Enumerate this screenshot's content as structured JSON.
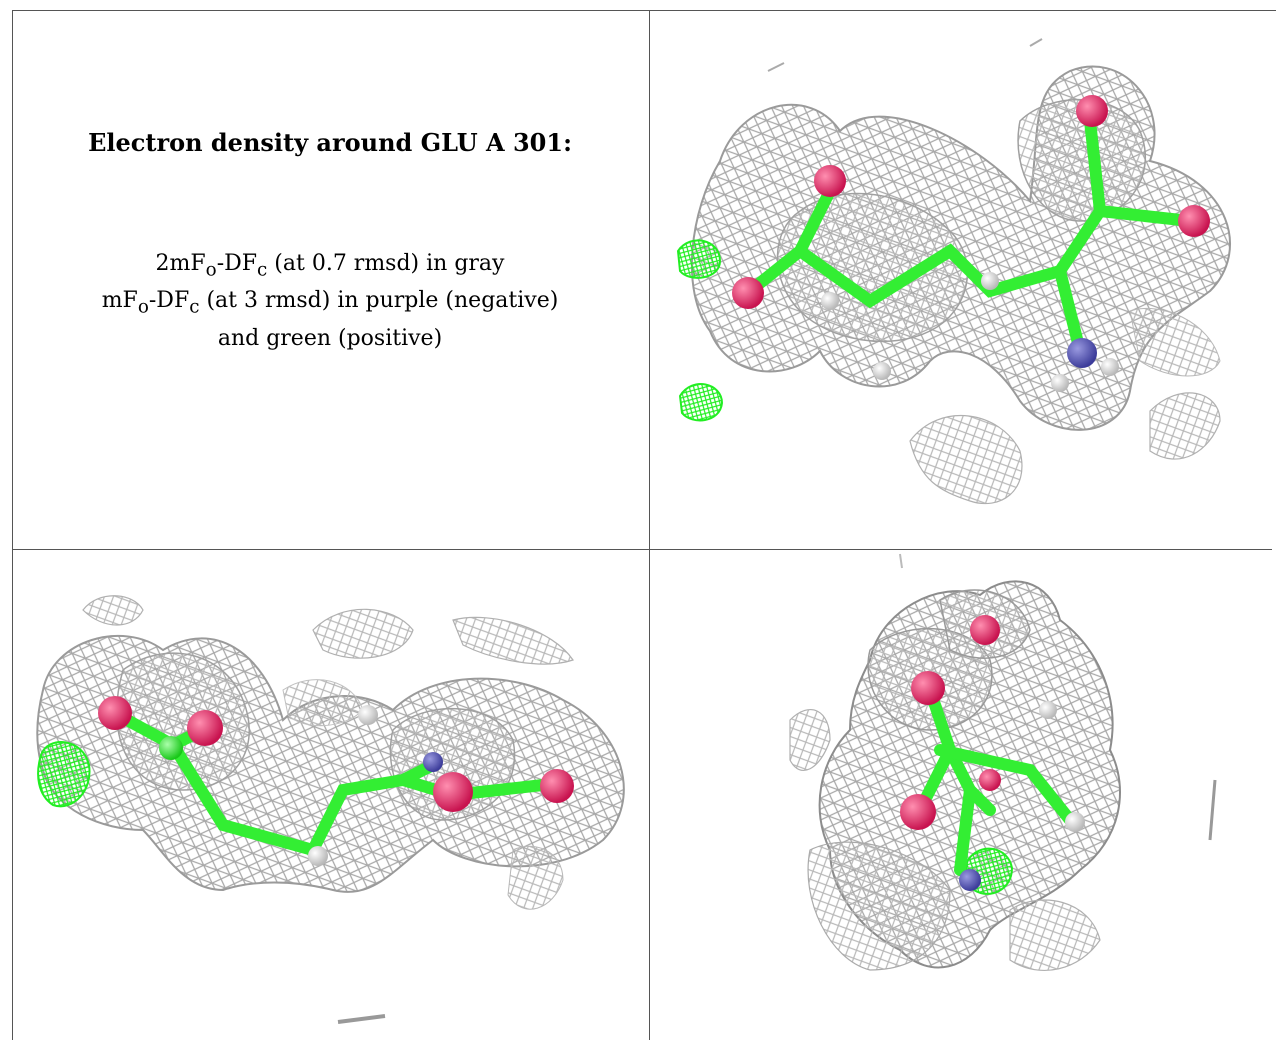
{
  "caption": {
    "title": "Electron density around GLU A 301:",
    "line1": {
      "a": "2mF",
      "sub1": "o",
      "b": "-DF",
      "sub2": "c",
      "c": " (at 0.7 rmsd) in gray"
    },
    "line2": {
      "a": "mF",
      "sub1": "o",
      "b": "-DF",
      "sub2": "c",
      "c": " (at 3 rmsd) in purple (negative)"
    },
    "line3": "and green (positive)"
  },
  "colors": {
    "mesh": "#b4b4b4",
    "mesh_dark": "#8c8c8c",
    "carbon": "#33ee33",
    "oxygen": "#e8336b",
    "nitrogen": "#5a5ab8",
    "hydrogen": "#f0f0f0",
    "positive_density": "#22ee22"
  },
  "views": [
    {
      "name": "view-top-right"
    },
    {
      "name": "view-bottom-left"
    },
    {
      "name": "view-bottom-right"
    }
  ]
}
